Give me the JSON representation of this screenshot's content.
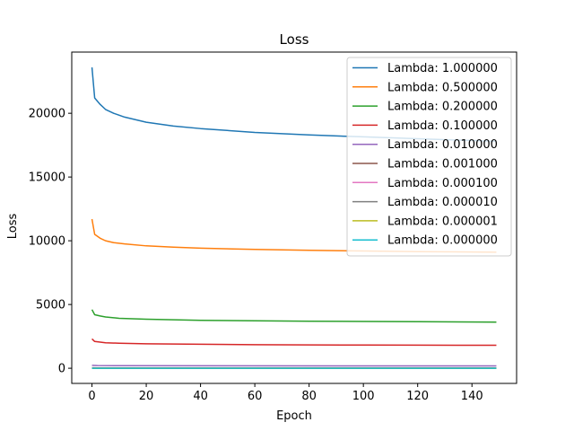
{
  "chart_data": {
    "type": "line",
    "title": "Loss",
    "xlabel": "Epoch",
    "ylabel": "Loss",
    "xlim": [
      -7.45,
      156.45
    ],
    "ylim": [
      -1190,
      24800
    ],
    "xticks": [
      0,
      20,
      40,
      60,
      80,
      100,
      120,
      140
    ],
    "yticks": [
      0,
      5000,
      10000,
      15000,
      20000
    ],
    "grid": false,
    "legend_position": "top-right",
    "n_epochs": 150,
    "series": [
      {
        "name": "Lambda: 1.000000",
        "color": "#1f77b4",
        "x": [
          0,
          1,
          3,
          5,
          8,
          12,
          20,
          30,
          40,
          60,
          80,
          100,
          120,
          149
        ],
        "y": [
          23600,
          21200,
          20700,
          20300,
          20000,
          19700,
          19300,
          19000,
          18800,
          18500,
          18300,
          18150,
          18000,
          17800
        ]
      },
      {
        "name": "Lambda: 0.500000",
        "color": "#ff7f0e",
        "x": [
          0,
          1,
          3,
          5,
          8,
          12,
          20,
          30,
          40,
          60,
          80,
          100,
          120,
          149
        ],
        "y": [
          11700,
          10500,
          10200,
          10000,
          9850,
          9750,
          9600,
          9500,
          9420,
          9320,
          9250,
          9200,
          9150,
          9100
        ]
      },
      {
        "name": "Lambda: 0.200000",
        "color": "#2ca02c",
        "x": [
          0,
          1,
          3,
          5,
          10,
          20,
          40,
          60,
          80,
          100,
          120,
          149
        ],
        "y": [
          4600,
          4200,
          4100,
          4020,
          3920,
          3850,
          3760,
          3720,
          3690,
          3670,
          3650,
          3620
        ]
      },
      {
        "name": "Lambda: 0.100000",
        "color": "#d62728",
        "x": [
          0,
          1,
          3,
          5,
          10,
          20,
          40,
          60,
          80,
          100,
          120,
          149
        ],
        "y": [
          2300,
          2100,
          2050,
          2000,
          1960,
          1920,
          1880,
          1850,
          1830,
          1820,
          1810,
          1800
        ]
      },
      {
        "name": "Lambda: 0.010000",
        "color": "#9467bd",
        "x": [
          0,
          2,
          10,
          50,
          100,
          149
        ],
        "y": [
          230,
          210,
          200,
          190,
          185,
          180
        ]
      },
      {
        "name": "Lambda: 0.001000",
        "color": "#8c564b",
        "x": [
          0,
          2,
          10,
          50,
          100,
          149
        ],
        "y": [
          30,
          25,
          22,
          20,
          19,
          18
        ]
      },
      {
        "name": "Lambda: 0.000100",
        "color": "#e377c2",
        "x": [
          0,
          2,
          10,
          50,
          100,
          149
        ],
        "y": [
          3,
          2.5,
          2.2,
          2,
          1.9,
          1.8
        ]
      },
      {
        "name": "Lambda: 0.000010",
        "color": "#7f7f7f",
        "x": [
          0,
          149
        ],
        "y": [
          0.3,
          0.2
        ]
      },
      {
        "name": "Lambda: 0.000001",
        "color": "#bcbd22",
        "x": [
          0,
          149
        ],
        "y": [
          0.03,
          0.02
        ]
      },
      {
        "name": "Lambda: 0.000000",
        "color": "#17becf",
        "x": [
          0,
          149
        ],
        "y": [
          0,
          0
        ]
      }
    ]
  }
}
